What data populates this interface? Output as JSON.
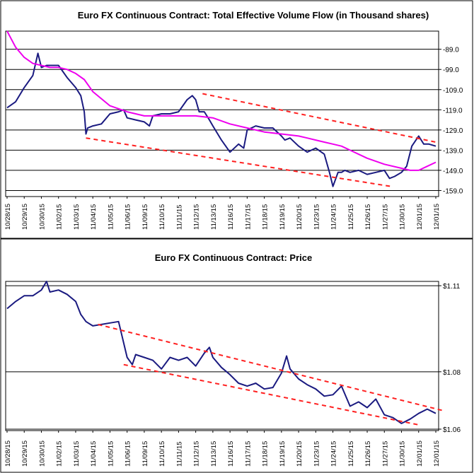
{
  "chart_data": [
    {
      "type": "line",
      "title": "Euro FX Continuous Contract: Total Effective Volume Flow (in Thousand shares)",
      "y_ticks": [
        "-89.0",
        "-99.0",
        "-109.0",
        "-119.0",
        "-129.0",
        "-139.0",
        "-149.0",
        "-159.0"
      ],
      "ylim": [
        -162,
        -80
      ],
      "grid": "horizontal",
      "x_ticks": [
        "10/28/15",
        "10/29/15",
        "10/30/15",
        "11/02/15",
        "11/03/15",
        "11/04/15",
        "11/05/15",
        "11/06/15",
        "11/09/15",
        "11/10/15",
        "11/11/15",
        "11/12/15",
        "11/13/15",
        "11/16/15",
        "11/17/15",
        "11/18/15",
        "11/19/15",
        "11/20/15",
        "11/23/15",
        "11/24/15",
        "11/25/15",
        "11/26/15",
        "11/27/15",
        "11/30/15",
        "12/01/15",
        "12/01/15"
      ],
      "series": [
        {
          "color": "#1a1a80",
          "x": [
            0,
            0.5,
            1,
            1.5,
            1.8,
            2,
            2.3,
            2.5,
            3,
            3.5,
            4,
            4.3,
            4.5,
            4.6,
            4.7,
            5,
            5.5,
            6,
            6.5,
            6.8,
            7,
            7.5,
            8,
            8.3,
            8.5,
            9,
            9.5,
            10,
            10.5,
            10.8,
            11,
            11.2,
            11.5,
            11.8,
            12,
            12.5,
            13,
            13.5,
            13.8,
            14,
            14.5,
            15,
            15.5,
            16,
            16.2,
            16.5,
            17,
            17.5,
            18,
            18.5,
            18.8,
            19,
            19.3,
            19.5,
            19.7,
            20,
            20.5,
            21,
            21.5,
            22,
            22.3,
            22.6,
            23,
            23.3,
            23.6,
            24,
            24.3,
            24.6,
            25
          ],
          "values": [
            -118,
            -115,
            -108,
            -102,
            -91,
            -98,
            -97,
            -97,
            -97,
            -103,
            -108,
            -112,
            -120,
            -131,
            -128,
            -127,
            -126,
            -121,
            -120,
            -119,
            -123,
            -124,
            -125,
            -127,
            -122,
            -121,
            -121,
            -120,
            -114,
            -112,
            -114,
            -120,
            -120,
            -124,
            -127,
            -134,
            -140,
            -136,
            -138,
            -129,
            -127,
            -128,
            -128,
            -132,
            -134,
            -133,
            -137,
            -140,
            -138,
            -141,
            -150,
            -157,
            -150,
            -150,
            -149,
            -150,
            -149,
            -151,
            -150,
            -149,
            -153,
            -152,
            -150,
            -147,
            -137,
            -132,
            -136,
            -136,
            -137
          ]
        },
        {
          "color": "#ee00ee",
          "x": [
            0,
            0.5,
            1,
            1.5,
            2,
            2.5,
            3,
            3.5,
            4,
            4.5,
            5,
            6,
            7,
            8,
            9,
            10,
            11,
            12,
            13,
            14,
            15,
            16,
            17,
            17.5,
            18,
            18.5,
            19,
            19.5,
            20,
            21,
            22,
            23,
            23.5,
            24,
            24.5,
            25
          ],
          "values": [
            -80,
            -88,
            -93,
            -96,
            -97,
            -98,
            -98,
            -99,
            -101,
            -104,
            -110,
            -117,
            -120,
            -122,
            -122,
            -122,
            -122,
            -123,
            -126,
            -128,
            -130,
            -131,
            -132,
            -133,
            -134,
            -135,
            -136,
            -137,
            -139,
            -143,
            -146,
            -148,
            -149,
            -149,
            -147,
            -145
          ]
        },
        {
          "color": "#ff2020",
          "dashed": true,
          "x": [
            11.4,
            25
          ],
          "values": [
            -111,
            -135
          ]
        },
        {
          "color": "#ff2020",
          "dashed": true,
          "x": [
            4.6,
            22.4
          ],
          "values": [
            -133,
            -157
          ]
        }
      ]
    },
    {
      "type": "line",
      "title": "Euro FX Continuous Contract: Price",
      "y_ticks": [
        "$1.11",
        "$1.08",
        "$1.06"
      ],
      "y_tick_values": [
        1.11,
        1.08,
        1.06
      ],
      "ylim": [
        1.0595,
        1.1115
      ],
      "grid": "horizontal",
      "x_ticks": [
        "10/28/15",
        "10/29/15",
        "10/30/15",
        "11/02/15",
        "11/03/15",
        "11/04/15",
        "11/05/15",
        "11/06/15",
        "11/09/15",
        "11/10/15",
        "11/11/15",
        "11/12/15",
        "11/13/15",
        "11/16/15",
        "11/17/15",
        "11/18/15",
        "11/19/15",
        "11/20/15",
        "11/23/15",
        "11/24/15",
        "11/25/15",
        "11/26/15",
        "11/27/15",
        "11/30/15",
        "12/01/15",
        "12/01/15"
      ],
      "series": [
        {
          "color": "#1a1a80",
          "x": [
            0,
            0.5,
            1,
            1.5,
            2,
            2.3,
            2.5,
            3,
            3.5,
            4,
            4.3,
            4.6,
            5,
            5.5,
            6,
            6.5,
            7,
            7.3,
            7.5,
            8,
            8.5,
            9,
            9.5,
            10,
            10.5,
            11,
            11.5,
            11.8,
            12,
            12.5,
            13,
            13.5,
            14,
            14.5,
            15,
            15.5,
            16,
            16.3,
            16.5,
            17,
            17.5,
            18,
            18.5,
            19,
            19.5,
            20,
            20.5,
            21,
            21.5,
            22,
            22.5,
            23,
            23.5,
            24,
            24.5,
            25
          ],
          "values": [
            1.102,
            1.1045,
            1.1065,
            1.1065,
            1.1085,
            1.1115,
            1.1078,
            1.1085,
            1.107,
            1.1045,
            1.1,
            1.0975,
            1.096,
            1.0965,
            1.097,
            1.0975,
            1.085,
            1.0825,
            1.086,
            1.085,
            1.084,
            1.081,
            1.085,
            1.084,
            1.085,
            1.082,
            1.0865,
            1.0885,
            1.085,
            1.0815,
            1.079,
            1.076,
            1.075,
            1.076,
            1.074,
            1.0745,
            1.0795,
            1.0855,
            1.081,
            1.0775,
            1.0755,
            1.074,
            1.0715,
            1.072,
            1.075,
            1.068,
            1.0695,
            1.0675,
            1.0705,
            1.065,
            1.064,
            1.062,
            1.0635,
            1.0655,
            1.067,
            1.0655
          ]
        },
        {
          "color": "#ff2020",
          "dashed": true,
          "x": [
            5.3,
            25.4
          ],
          "values": [
            1.0965,
            1.0665
          ]
        },
        {
          "color": "#ff2020",
          "dashed": true,
          "x": [
            6.8,
            24
          ],
          "values": [
            1.0825,
            1.0615
          ]
        }
      ]
    }
  ]
}
